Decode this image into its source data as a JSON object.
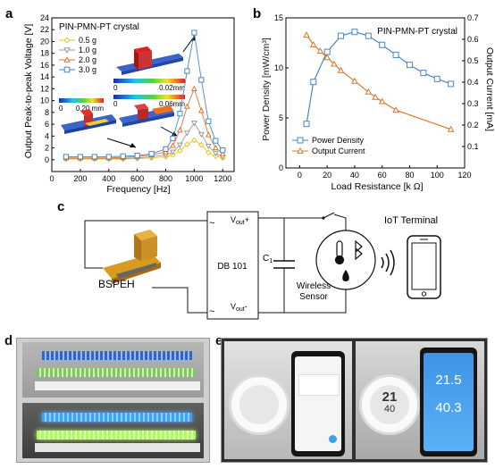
{
  "panel_labels": {
    "a": "a",
    "b": "b",
    "c": "c",
    "d": "d",
    "e": "e"
  },
  "chart_data": [
    {
      "type": "line",
      "title": "PIN-PMN-PT crystal",
      "xlabel": "Frequency [Hz]",
      "ylabel": "Output Peak-to-peak Voltage [V]",
      "xlim": [
        0,
        1280
      ],
      "ylim": [
        -2,
        24
      ],
      "xticks": [
        0,
        200,
        400,
        600,
        800,
        1000,
        1200
      ],
      "yticks": [
        0,
        2,
        4,
        6,
        8,
        10,
        12,
        14,
        16,
        18,
        20,
        22,
        24
      ],
      "legend_position": "top-left",
      "series": [
        {
          "name": "0.5 g",
          "color": "#e8c229",
          "marker": "diamond",
          "x": [
            100,
            200,
            300,
            400,
            500,
            600,
            700,
            800,
            850,
            900,
            950,
            1000,
            1050,
            1100,
            1150,
            1200
          ],
          "y": [
            0.1,
            0.1,
            0.1,
            0.1,
            0.1,
            0.2,
            0.3,
            0.5,
            0.8,
            1.5,
            2.6,
            3.3,
            2.5,
            1.2,
            0.6,
            0.3
          ]
        },
        {
          "name": "1.0 g",
          "color": "#9a9a9a",
          "marker": "triangle-down",
          "x": [
            100,
            200,
            300,
            400,
            500,
            600,
            700,
            800,
            850,
            900,
            950,
            1000,
            1050,
            1100,
            1150,
            1200
          ],
          "y": [
            0.2,
            0.2,
            0.2,
            0.2,
            0.2,
            0.3,
            0.5,
            0.8,
            1.3,
            2.5,
            4.5,
            6.2,
            4.3,
            2.3,
            1.1,
            0.5
          ]
        },
        {
          "name": "2.0 g",
          "color": "#d9782d",
          "marker": "triangle-up",
          "x": [
            100,
            200,
            300,
            400,
            500,
            600,
            700,
            800,
            850,
            900,
            950,
            1000,
            1050,
            1100,
            1150,
            1200
          ],
          "y": [
            0.3,
            0.3,
            0.3,
            0.3,
            0.4,
            0.5,
            0.8,
            1.3,
            2.4,
            5.0,
            9.0,
            12.0,
            8.3,
            4.2,
            2.0,
            1.0
          ]
        },
        {
          "name": "3.0 g",
          "color": "#4a86c5",
          "marker": "square",
          "x": [
            100,
            200,
            300,
            400,
            500,
            600,
            700,
            800,
            850,
            900,
            950,
            1000,
            1050,
            1100,
            1150,
            1200
          ],
          "y": [
            0.5,
            0.5,
            0.5,
            0.5,
            0.6,
            0.7,
            1.0,
            1.8,
            3.6,
            7.8,
            15.0,
            21.5,
            13.5,
            6.5,
            3.2,
            1.6
          ]
        }
      ],
      "insets": [
        {
          "scale_max": "0.02mm",
          "scale_min": "0"
        },
        {
          "scale_max": "0.06mm",
          "scale_min": "0"
        },
        {
          "scale_max": "0.20 mm",
          "scale_min": "0"
        }
      ]
    },
    {
      "type": "line",
      "title": "PIN-PMN-PT crystal",
      "xlabel": "Load Resistance [k Ω]",
      "ylabel": "Power Density [mW/cm³]",
      "ylabel_right": "Output Current [mA]",
      "xlim": [
        -10,
        120
      ],
      "ylim": [
        0,
        15
      ],
      "ylim_right": [
        0,
        0.7
      ],
      "xticks": [
        0,
        20,
        40,
        60,
        80,
        100,
        120
      ],
      "yticks": [
        0,
        5,
        10,
        15
      ],
      "yticks_right": [
        0.1,
        0.2,
        0.3,
        0.4,
        0.5,
        0.6,
        0.7
      ],
      "legend_position": "bottom-left",
      "series": [
        {
          "name": "Power Density",
          "color": "#4a86c5",
          "marker": "square",
          "axis": "left",
          "x": [
            5,
            10,
            20,
            30,
            40,
            50,
            60,
            70,
            80,
            90,
            100,
            110
          ],
          "y": [
            4.4,
            8.6,
            11.6,
            13.2,
            13.6,
            13.2,
            12.3,
            11.3,
            10.3,
            9.5,
            8.9,
            8.4
          ]
        },
        {
          "name": "Output Current",
          "color": "#d9782d",
          "marker": "triangle-up",
          "axis": "right",
          "x": [
            5,
            10,
            15,
            20,
            25,
            30,
            40,
            50,
            55,
            60,
            70,
            110
          ],
          "y": [
            0.62,
            0.575,
            0.545,
            0.515,
            0.485,
            0.455,
            0.405,
            0.355,
            0.33,
            0.31,
            0.27,
            0.18
          ]
        }
      ]
    }
  ],
  "circuit": {
    "device_label": "BSPEH",
    "rectifier_label": "DB 101",
    "vout_plus_main": "V",
    "vout_plus_sub": "out",
    "vout_plus_sign": "+",
    "vout_minus_main": "V",
    "vout_minus_sub": "out",
    "vout_minus_sign": "-",
    "ac_symbol": "~",
    "capacitor_main": "C",
    "capacitor_sub": "1",
    "sensor_label_line1": "Wireless",
    "sensor_label_line2": "Sensor",
    "terminal_label": "IoT Terminal"
  },
  "photo_e": {
    "reading_left_top": "21",
    "reading_left_bottom": "40",
    "phone_reading_top": "21.5",
    "phone_reading_bottom": "40.3"
  }
}
